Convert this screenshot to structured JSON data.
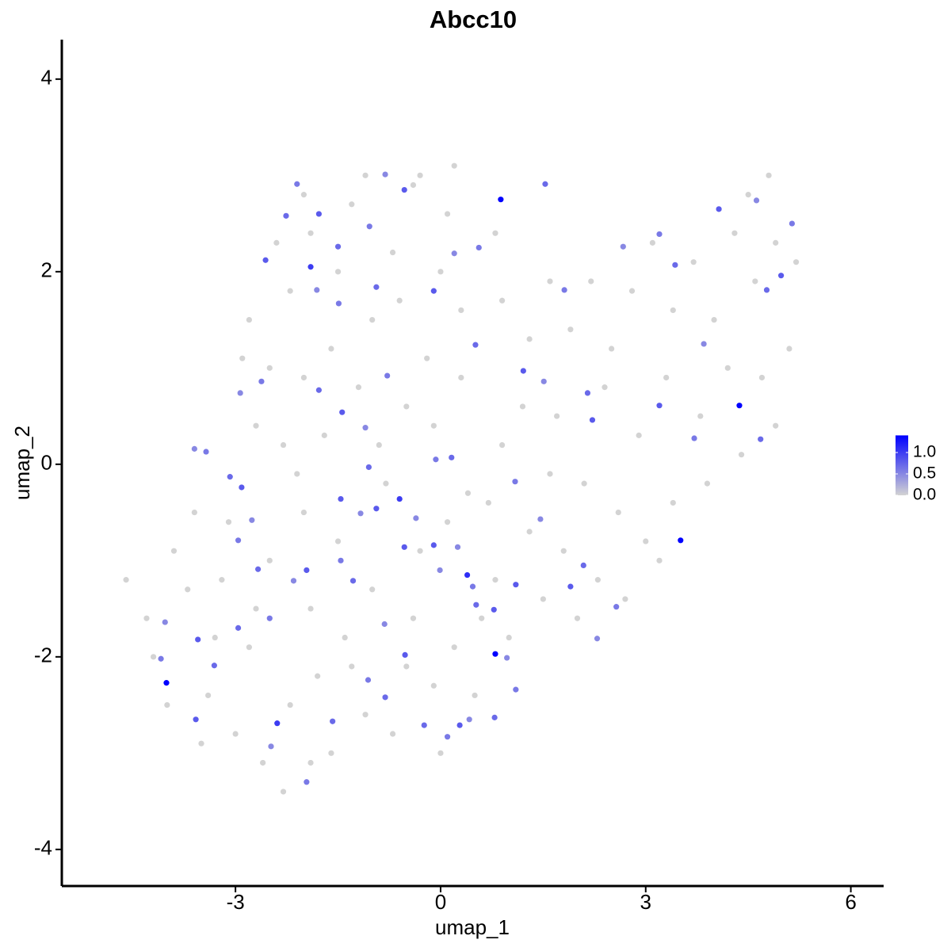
{
  "chart_data": {
    "type": "scatter",
    "title": "Abcc10",
    "x_label": "umap_1",
    "y_label": "umap_2",
    "xlim": [
      -5.54,
      6.48
    ],
    "ylim": [
      -4.38,
      4.41
    ],
    "xticks": [
      -3,
      0,
      3,
      6
    ],
    "yticks": [
      -4,
      -2,
      0,
      2,
      4
    ],
    "grid": false,
    "colorbar": {
      "range": [
        0,
        1.4
      ],
      "ticks": [
        {
          "value": 0,
          "label": "0.0"
        },
        0.5,
        {
          "value": 1,
          "label": "1.0"
        }
      ],
      "colors": [
        "#d3d3d3",
        "#0000ff"
      ]
    },
    "x": [
      -2.8,
      -2.5,
      -2.2,
      -1.9,
      -1.6,
      -1.3,
      -1.0,
      -0.7,
      -0.4,
      -0.2,
      0.1,
      0.3,
      -2.7,
      -2.3,
      -2.0,
      -1.7,
      -1.2,
      -0.9,
      -0.5,
      -0.1,
      0.3,
      -2.4,
      -1.5,
      -0.6,
      0.0,
      -1.1,
      -0.3,
      0.2,
      -2.0,
      -2.9,
      0.8,
      0.9,
      1.3,
      1.6,
      1.9,
      2.2,
      2.5,
      2.8,
      3.1,
      3.4,
      3.7,
      4.0,
      4.3,
      4.6,
      4.9,
      5.2,
      4.8,
      4.5,
      1.2,
      1.7,
      2.4,
      2.9,
      3.3,
      3.8,
      4.2,
      4.7,
      5.1,
      4.9,
      4.4,
      3.9,
      3.4,
      3.0,
      2.6,
      2.1,
      1.6,
      1.3,
      1.8,
      2.3,
      2.7,
      3.2,
      2.0,
      1.5,
      0.9,
      0.7,
      -4.6,
      -4.3,
      -4.0,
      -3.7,
      -3.4,
      -3.1,
      -2.8,
      -2.5,
      -2.2,
      -1.9,
      -1.6,
      -1.3,
      -1.0,
      -0.7,
      -0.4,
      -0.1,
      0.2,
      0.5,
      0.8,
      1.0,
      -3.6,
      -3.2,
      -2.6,
      -2.3,
      -1.9,
      -3.0,
      -2.0,
      -1.5,
      -0.8,
      -0.3,
      0.1,
      0.4,
      -3.9,
      -4.2,
      -3.5,
      -1.1,
      0.0,
      -0.5,
      -2.7,
      -1.4,
      0.6,
      -2.1,
      -1.8,
      -3.3,
      0.88,
      4.37,
      3.51,
      0.8,
      -4.01,
      0.39,
      -0.6,
      -1.9,
      -2.39,
      -2.1,
      -2.26,
      -1.78,
      -0.81,
      -1.04,
      -1.5,
      -2.56,
      -1.81,
      -1.49,
      -0.94,
      -0.1,
      0.2,
      0.56,
      1.53,
      -0.53,
      -2.93,
      -2.62,
      -1.78,
      -1.44,
      -1.1,
      -0.78,
      0.51,
      1.21,
      1.51,
      1.81,
      2.15,
      2.22,
      2.67,
      3.2,
      3.43,
      4.07,
      4.62,
      5.14,
      4.77,
      4.98,
      3.85,
      3.71,
      4.68,
      3.2,
      -3.6,
      -3.43,
      -3.08,
      -2.91,
      -2.76,
      -2.96,
      -2.67,
      -1.96,
      -2.15,
      -2.5,
      -2.96,
      -3.55,
      -4.03,
      -4.09,
      -3.31,
      -3.58,
      -2.48,
      -1.96,
      -1.58,
      -0.53,
      -0.36,
      -0.07,
      0.16,
      -0.1,
      0.25,
      0.47,
      0.52,
      0.78,
      0.97,
      1.1,
      0.79,
      0.28,
      0.42,
      0.1,
      -0.24,
      -0.52,
      -0.82,
      -1.06,
      -0.81,
      1.1,
      1.46,
      1.09,
      2.09,
      1.9,
      2.29,
      2.57,
      -1.05,
      -1.46,
      -1.17,
      -1.46,
      -1.28,
      -0.94,
      -0.01
    ],
    "y": [
      1.5,
      1.0,
      1.8,
      2.4,
      1.2,
      2.7,
      1.5,
      2.2,
      2.9,
      1.1,
      2.6,
      1.6,
      0.4,
      0.2,
      0.9,
      0.3,
      0.8,
      0.2,
      0.6,
      0.4,
      0.9,
      2.3,
      2.0,
      1.7,
      2.0,
      3.0,
      3.0,
      3.1,
      2.8,
      1.1,
      2.4,
      1.7,
      1.3,
      1.9,
      1.4,
      1.9,
      1.2,
      1.8,
      2.3,
      1.6,
      2.1,
      1.5,
      2.4,
      1.9,
      2.3,
      2.1,
      3.0,
      2.8,
      0.6,
      0.5,
      0.8,
      0.3,
      0.9,
      0.5,
      1.0,
      0.9,
      1.2,
      0.4,
      0.1,
      -0.2,
      -0.4,
      -0.8,
      -0.5,
      -0.2,
      -0.1,
      -0.7,
      -0.9,
      -1.2,
      -1.4,
      -1.0,
      -1.6,
      -1.4,
      0.2,
      -0.4,
      -1.2,
      -1.6,
      -2.5,
      -1.3,
      -2.4,
      -0.6,
      -1.9,
      -1.0,
      -2.5,
      -1.5,
      -3.0,
      -2.1,
      -1.3,
      -2.8,
      -1.6,
      -2.3,
      -1.9,
      -2.4,
      -1.2,
      -1.8,
      -0.5,
      -1.2,
      -3.1,
      -3.4,
      -3.1,
      -2.8,
      -0.5,
      -0.8,
      -0.2,
      -0.9,
      -0.6,
      -0.3,
      -0.9,
      -2.0,
      -2.9,
      -2.6,
      -3.0,
      -2.1,
      -1.5,
      -1.8,
      -1.6,
      -0.1,
      -2.2,
      -1.8,
      2.75,
      0.61,
      -0.79,
      -1.97,
      -2.27,
      -1.15,
      -0.36,
      2.05,
      -2.69,
      2.91,
      2.58,
      2.6,
      3.01,
      2.47,
      2.26,
      2.12,
      1.81,
      1.67,
      1.84,
      1.8,
      2.19,
      2.25,
      2.91,
      2.85,
      0.74,
      0.86,
      0.77,
      0.54,
      0.38,
      0.92,
      1.24,
      0.97,
      0.86,
      1.81,
      0.74,
      0.46,
      2.26,
      2.39,
      2.07,
      2.65,
      2.74,
      2.5,
      1.81,
      1.96,
      1.25,
      0.27,
      0.26,
      0.61,
      0.16,
      0.13,
      -0.13,
      -0.24,
      -0.58,
      -0.79,
      -1.09,
      -1.1,
      -1.21,
      -1.6,
      -1.7,
      -1.82,
      -1.64,
      -2.02,
      -2.09,
      -2.65,
      -2.93,
      -3.3,
      -2.67,
      -0.86,
      -0.56,
      0.05,
      0.07,
      -0.84,
      -0.86,
      -1.27,
      -1.46,
      -1.51,
      -2.01,
      -2.34,
      -2.63,
      -2.71,
      -2.65,
      -2.83,
      -2.71,
      -1.98,
      -1.66,
      -2.24,
      -2.42,
      -1.25,
      -0.57,
      -0.18,
      -1.05,
      -1.27,
      -1.81,
      -1.48,
      -0.03,
      -0.36,
      -0.51,
      -1.0,
      -1.21,
      -0.46,
      -1.1
    ],
    "values": [
      0,
      0,
      0,
      0,
      0,
      0,
      0,
      0,
      0,
      0,
      0,
      0,
      0,
      0,
      0,
      0,
      0,
      0,
      0,
      0,
      0,
      0,
      0,
      0,
      0,
      0,
      0,
      0,
      0,
      0,
      0,
      0,
      0,
      0,
      0,
      0,
      0,
      0,
      0,
      0,
      0,
      0,
      0,
      0,
      0,
      0,
      0,
      0,
      0,
      0,
      0,
      0,
      0,
      0,
      0,
      0,
      0,
      0,
      0,
      0,
      0,
      0,
      0,
      0,
      0,
      0,
      0,
      0,
      0,
      0,
      0,
      0,
      0,
      0,
      0,
      0,
      0,
      0,
      0,
      0,
      0,
      0,
      0,
      0,
      0,
      0,
      0,
      0,
      0,
      0,
      0,
      0,
      0,
      0,
      0,
      0,
      0,
      0,
      0,
      0,
      0,
      0,
      0,
      0,
      0,
      0,
      0,
      0,
      0,
      0,
      0,
      0,
      0,
      0,
      0,
      0,
      0,
      0,
      1.4,
      1.4,
      1.4,
      1.4,
      1.4,
      1.1,
      1.0,
      1.0,
      1.0,
      0.6,
      0.7,
      0.8,
      0.5,
      0.6,
      0.7,
      0.8,
      0.5,
      0.6,
      0.7,
      0.8,
      0.5,
      0.6,
      0.7,
      0.8,
      0.5,
      0.6,
      0.7,
      0.8,
      0.5,
      0.6,
      0.7,
      0.8,
      0.5,
      0.6,
      0.7,
      0.8,
      0.5,
      0.6,
      0.7,
      0.8,
      0.5,
      0.6,
      0.7,
      0.8,
      0.5,
      0.6,
      0.7,
      0.8,
      0.5,
      0.6,
      0.7,
      0.8,
      0.5,
      0.6,
      0.7,
      0.8,
      0.5,
      0.6,
      0.7,
      0.8,
      0.5,
      0.6,
      0.7,
      0.8,
      0.5,
      0.6,
      0.7,
      0.8,
      0.5,
      0.6,
      0.7,
      0.8,
      0.5,
      0.6,
      0.7,
      0.8,
      0.5,
      0.6,
      0.7,
      0.8,
      0.5,
      0.6,
      0.7,
      0.8,
      0.5,
      0.6,
      0.7,
      0.8,
      0.5,
      0.6,
      0.7,
      0.8,
      0.5,
      0.6,
      0.7,
      0.8,
      0.5,
      0.6,
      0.7,
      0.8,
      0.5
    ]
  }
}
